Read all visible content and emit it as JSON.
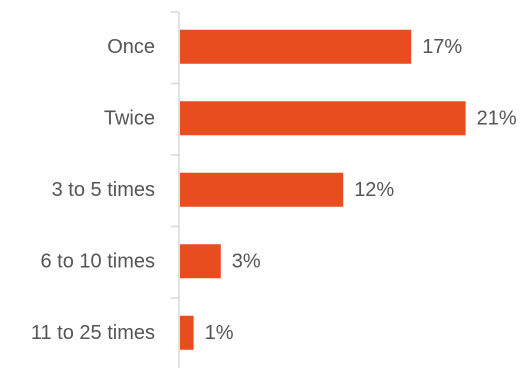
{
  "chart_data": {
    "type": "bar",
    "orientation": "horizontal",
    "categories": [
      "Once",
      "Twice",
      "3 to 5 times",
      "6 to 10 times",
      "11 to 25 times"
    ],
    "values": [
      17,
      21,
      12,
      3,
      1
    ],
    "value_labels": [
      "17%",
      "21%",
      "12%",
      "3%",
      "1%"
    ],
    "unit": "%",
    "xlim": [
      0,
      21
    ],
    "grid": false,
    "legend": "none",
    "colors": {
      "bar": "#E84C1F",
      "axis": "#D9D9D9",
      "text": "#555555",
      "background": "#FFFFFF"
    }
  }
}
